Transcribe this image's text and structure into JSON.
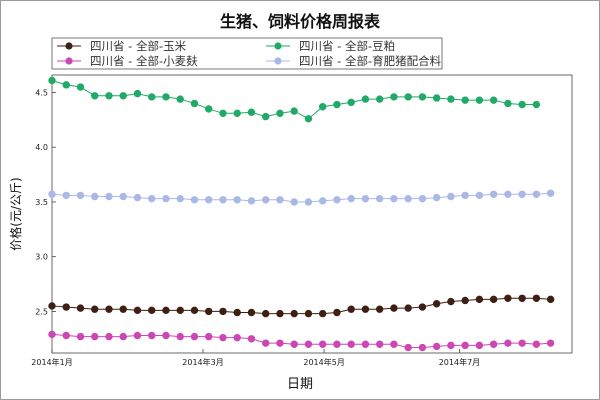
{
  "chart_data": {
    "type": "line",
    "title": "生猪、饲料价格周报表",
    "xlabel": "日期",
    "ylabel": "价格(元/公斤)",
    "ylim": [
      2.12,
      4.66
    ],
    "yticks": [
      2.5,
      3.0,
      3.5,
      4.0,
      4.5
    ],
    "ytick_labels": [
      "2.5",
      "3.0",
      "3.5",
      "4.0",
      "4.5"
    ],
    "xlim": [
      0,
      36.5
    ],
    "xticks": [
      0,
      10.6,
      19.1,
      28.6
    ],
    "xtick_labels": [
      "2014年1月",
      "2014年3月",
      "2014年5月",
      "2014年7月"
    ],
    "grid": false,
    "legend_position": "top",
    "series": [
      {
        "name": "四川省 - 全部-玉米",
        "color": "#3e1f14",
        "values": [
          2.55,
          2.54,
          2.53,
          2.52,
          2.52,
          2.52,
          2.51,
          2.51,
          2.51,
          2.51,
          2.51,
          2.5,
          2.5,
          2.49,
          2.49,
          2.48,
          2.48,
          2.48,
          2.48,
          2.48,
          2.49,
          2.52,
          2.52,
          2.52,
          2.53,
          2.53,
          2.54,
          2.57,
          2.59,
          2.6,
          2.61,
          2.61,
          2.62,
          2.62,
          2.62,
          2.61
        ]
      },
      {
        "name": "四川省 - 全部-豆粕",
        "color": "#1faa68",
        "values": [
          4.61,
          4.57,
          4.55,
          4.47,
          4.47,
          4.47,
          4.49,
          4.46,
          4.46,
          4.44,
          4.4,
          4.35,
          4.31,
          4.31,
          4.32,
          4.28,
          4.31,
          4.33,
          4.26,
          4.37,
          4.39,
          4.41,
          4.44,
          4.44,
          4.46,
          4.46,
          4.46,
          4.45,
          4.44,
          4.43,
          4.43,
          4.43,
          4.4,
          4.39,
          4.39
        ]
      },
      {
        "name": "四川省 - 全部-小麦麸",
        "color": "#cc47b3",
        "values": [
          2.29,
          2.28,
          2.27,
          2.27,
          2.27,
          2.27,
          2.28,
          2.28,
          2.28,
          2.27,
          2.27,
          2.27,
          2.26,
          2.26,
          2.25,
          2.21,
          2.21,
          2.2,
          2.2,
          2.2,
          2.2,
          2.2,
          2.2,
          2.2,
          2.2,
          2.17,
          2.17,
          2.18,
          2.19,
          2.19,
          2.19,
          2.2,
          2.21,
          2.21,
          2.2,
          2.21
        ]
      },
      {
        "name": "四川省 - 全部-育肥猪配合料",
        "color": "#aab8e6",
        "values": [
          3.57,
          3.56,
          3.56,
          3.55,
          3.55,
          3.55,
          3.54,
          3.53,
          3.53,
          3.53,
          3.52,
          3.52,
          3.52,
          3.52,
          3.51,
          3.52,
          3.52,
          3.5,
          3.5,
          3.51,
          3.52,
          3.53,
          3.53,
          3.53,
          3.53,
          3.53,
          3.53,
          3.54,
          3.55,
          3.56,
          3.56,
          3.57,
          3.57,
          3.57,
          3.57,
          3.58
        ]
      }
    ]
  }
}
